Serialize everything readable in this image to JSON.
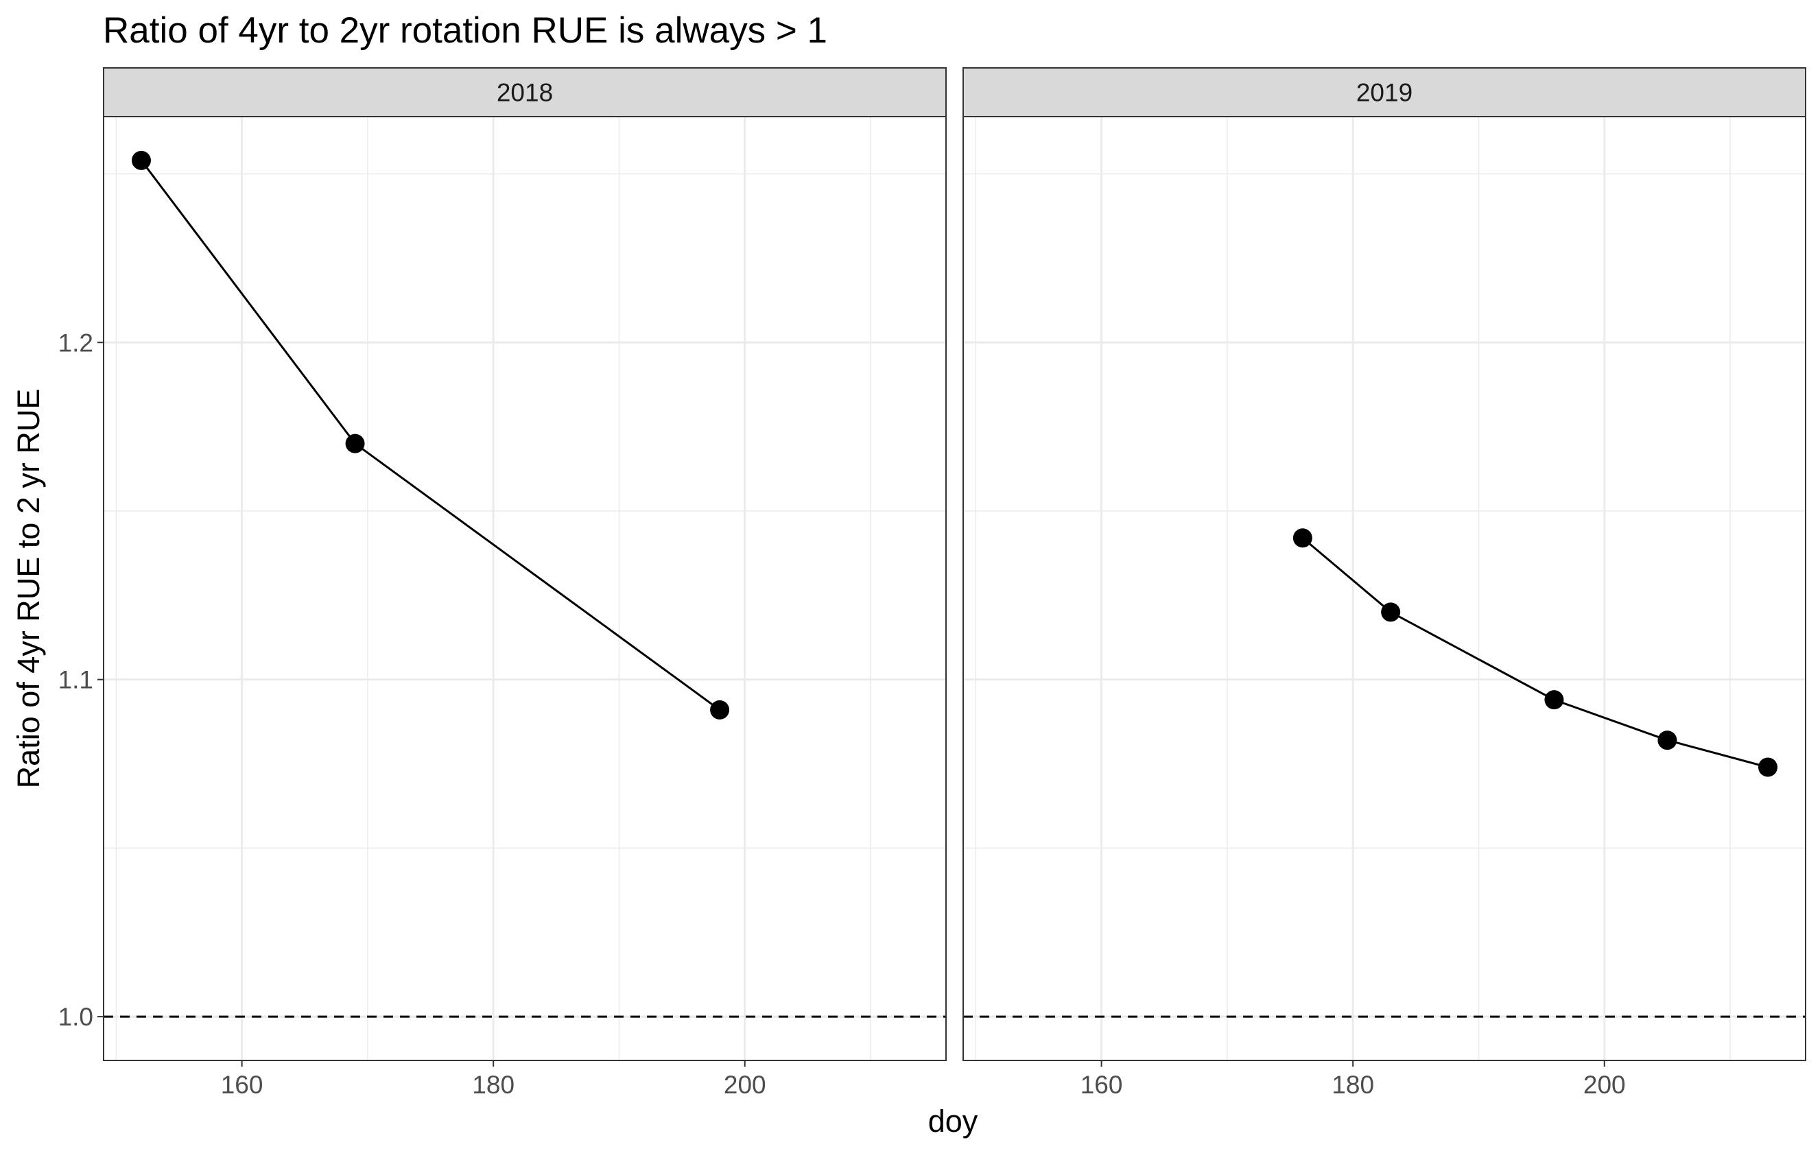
{
  "chart_data": {
    "type": "line",
    "title": "Ratio of 4yr to 2yr rotation RUE is always > 1",
    "xlabel": "doy",
    "ylabel": "Ratio of 4yr RUE to 2 yr RUE",
    "xlim": [
      149,
      216
    ],
    "ylim": [
      0.987,
      1.267
    ],
    "x_major_ticks": [
      160,
      180,
      200
    ],
    "x_minor_ticks": [
      150,
      170,
      190,
      210
    ],
    "y_major_ticks": [
      1.0,
      1.1,
      1.2
    ],
    "y_minor_ticks": [
      1.05,
      1.15,
      1.25
    ],
    "x_tick_labels": [
      "160",
      "180",
      "200"
    ],
    "y_tick_labels": [
      "1.0",
      "1.1",
      "1.2"
    ],
    "reference_line": {
      "y": 1.0,
      "style": "dashed"
    },
    "grid": true,
    "colors": {
      "line": "#000000",
      "point": "#000000",
      "grid": "#ebebeb",
      "strip_fill": "#d9d9d9",
      "border": "#333333"
    },
    "panels": [
      {
        "label": "2018",
        "x": [
          152,
          169,
          198
        ],
        "y": [
          1.254,
          1.17,
          1.091
        ]
      },
      {
        "label": "2019",
        "x": [
          176,
          183,
          196,
          205,
          213
        ],
        "y": [
          1.142,
          1.12,
          1.094,
          1.082,
          1.074
        ]
      }
    ]
  }
}
